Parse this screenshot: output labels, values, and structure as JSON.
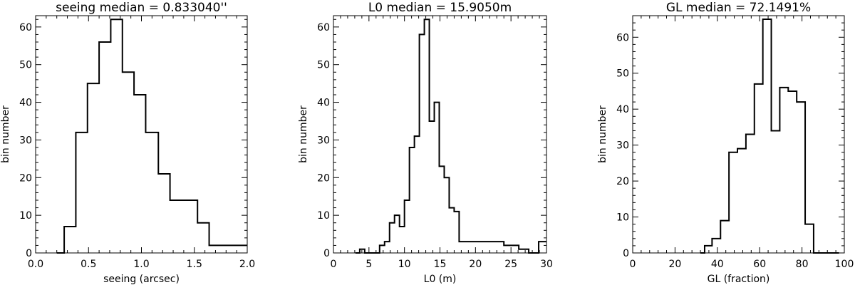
{
  "chart_data": [
    {
      "type": "histogram",
      "title": "seeing median = 0.833040''",
      "xlabel": "seeing (arcsec)",
      "ylabel": "bin number",
      "xlim": [
        0.0,
        2.0
      ],
      "ylim": [
        0,
        63
      ],
      "xticks": [
        "0.0",
        "0.5",
        "1.0",
        "1.5",
        "2.0"
      ],
      "yticks": [
        "0",
        "10",
        "20",
        "30",
        "40",
        "50",
        "60"
      ],
      "bin_edges": [
        0.2,
        0.27,
        0.38,
        0.49,
        0.6,
        0.71,
        0.82,
        0.93,
        1.04,
        1.16,
        1.27,
        1.38,
        1.53,
        1.64,
        2.0
      ],
      "values": [
        0,
        7,
        32,
        45,
        56,
        62,
        48,
        42,
        32,
        21,
        14,
        14,
        8,
        2
      ]
    },
    {
      "type": "histogram",
      "title": "L0 median = 15.9050m",
      "xlabel": "L0 (m)",
      "ylabel": "bin number",
      "xlim": [
        0,
        30
      ],
      "ylim": [
        0,
        63
      ],
      "xticks": [
        "0",
        "5",
        "10",
        "15",
        "20",
        "25",
        "30"
      ],
      "yticks": [
        "0",
        "10",
        "20",
        "30",
        "40",
        "50",
        "60"
      ],
      "bin_edges": [
        3.1,
        3.7,
        4.4,
        5.1,
        5.8,
        6.5,
        7.2,
        7.9,
        8.6,
        9.3,
        10.0,
        10.7,
        11.4,
        12.1,
        12.8,
        13.5,
        14.2,
        14.9,
        15.6,
        16.3,
        17.0,
        17.7,
        18.4,
        19.1,
        19.8,
        20.5,
        21.2,
        21.9,
        22.6,
        23.3,
        24.0,
        24.7,
        25.4,
        26.1,
        26.8,
        27.5,
        28.2,
        28.9,
        29.6,
        30.0
      ],
      "values": [
        0,
        1,
        0,
        0,
        0,
        2,
        3,
        8,
        10,
        7,
        14,
        28,
        31,
        58,
        62,
        35,
        40,
        23,
        20,
        12,
        11,
        3,
        3,
        3,
        3,
        3,
        3,
        3,
        3,
        3,
        2,
        2,
        2,
        1,
        1,
        0,
        0,
        3,
        3
      ]
    },
    {
      "type": "histogram",
      "title": "GL median = 72.1491%",
      "xlabel": "GL (fraction)",
      "ylabel": "bin number",
      "xlim": [
        0,
        100
      ],
      "ylim": [
        0,
        66
      ],
      "xticks": [
        "0",
        "20",
        "40",
        "60",
        "80",
        "100"
      ],
      "yticks": [
        "0",
        "10",
        "20",
        "30",
        "40",
        "50",
        "60"
      ],
      "bin_edges": [
        32.0,
        34.0,
        37.5,
        41.5,
        45.5,
        49.5,
        53.5,
        57.5,
        61.5,
        65.5,
        69.5,
        73.5,
        77.5,
        81.5,
        85.5,
        89.5,
        94.0,
        97.5
      ],
      "values": [
        0,
        2,
        4,
        9,
        28,
        29,
        33,
        47,
        65,
        34,
        46,
        45,
        42,
        8,
        0,
        0,
        0
      ]
    }
  ]
}
